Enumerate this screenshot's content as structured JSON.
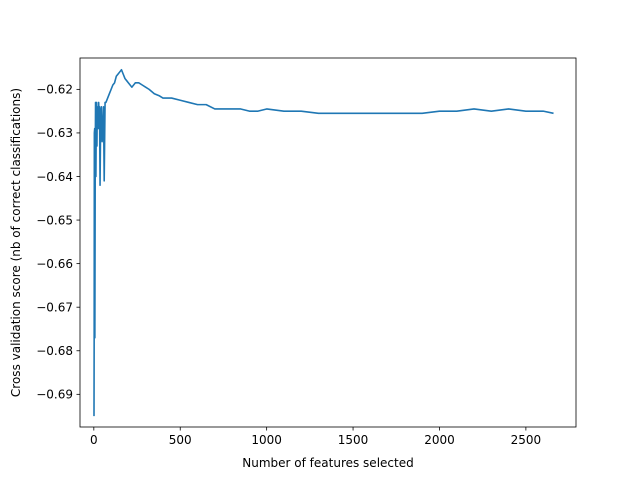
{
  "chart_data": {
    "type": "line",
    "title": "",
    "xlabel": "Number of features selected",
    "ylabel": "Cross validation score (nb of correct classifications)",
    "xlim": [
      -80,
      2790
    ],
    "ylim": [
      -0.6975,
      -0.6128
    ],
    "xticks": [
      0,
      500,
      1000,
      1500,
      2000,
      2500
    ],
    "xtick_labels": [
      "0",
      "500",
      "1000",
      "1500",
      "2000",
      "2500"
    ],
    "yticks": [
      -0.69,
      -0.68,
      -0.67,
      -0.66,
      -0.65,
      -0.64,
      -0.63,
      -0.62
    ],
    "ytick_labels": [
      "−0.69",
      "−0.68",
      "−0.67",
      "−0.66",
      "−0.65",
      "−0.64",
      "−0.63",
      "−0.62"
    ],
    "grid": false,
    "legend": "none",
    "series": [
      {
        "color": "#1f77b4",
        "x": [
          1,
          2,
          3,
          5,
          6,
          8,
          10,
          12,
          14,
          16,
          18,
          20,
          22,
          25,
          28,
          30,
          33,
          36,
          40,
          44,
          48,
          52,
          56,
          60,
          65,
          70,
          80,
          90,
          100,
          110,
          120,
          130,
          140,
          150,
          160,
          170,
          180,
          200,
          220,
          240,
          260,
          280,
          300,
          320,
          350,
          380,
          400,
          450,
          500,
          550,
          600,
          650,
          700,
          750,
          800,
          850,
          900,
          950,
          1000,
          1100,
          1200,
          1300,
          1400,
          1500,
          1600,
          1700,
          1800,
          1900,
          2000,
          2100,
          2200,
          2300,
          2400,
          2500,
          2600,
          2660
        ],
        "y": [
          -0.695,
          -0.676,
          -0.63,
          -0.629,
          -0.677,
          -0.638,
          -0.623,
          -0.64,
          -0.628,
          -0.623,
          -0.633,
          -0.624,
          -0.627,
          -0.629,
          -0.623,
          -0.625,
          -0.624,
          -0.642,
          -0.625,
          -0.624,
          -0.632,
          -0.629,
          -0.624,
          -0.641,
          -0.623,
          -0.623,
          -0.622,
          -0.621,
          -0.62,
          -0.619,
          -0.6185,
          -0.617,
          -0.6165,
          -0.616,
          -0.6155,
          -0.6165,
          -0.6175,
          -0.6185,
          -0.6195,
          -0.6185,
          -0.6185,
          -0.619,
          -0.6195,
          -0.62,
          -0.621,
          -0.6215,
          -0.622,
          -0.622,
          -0.6225,
          -0.623,
          -0.6235,
          -0.6235,
          -0.6245,
          -0.6245,
          -0.6245,
          -0.6245,
          -0.625,
          -0.625,
          -0.6245,
          -0.625,
          -0.625,
          -0.6255,
          -0.6255,
          -0.6255,
          -0.6255,
          -0.6255,
          -0.6255,
          -0.6255,
          -0.625,
          -0.625,
          -0.6245,
          -0.625,
          -0.6245,
          -0.625,
          -0.625,
          -0.6255
        ]
      }
    ]
  }
}
